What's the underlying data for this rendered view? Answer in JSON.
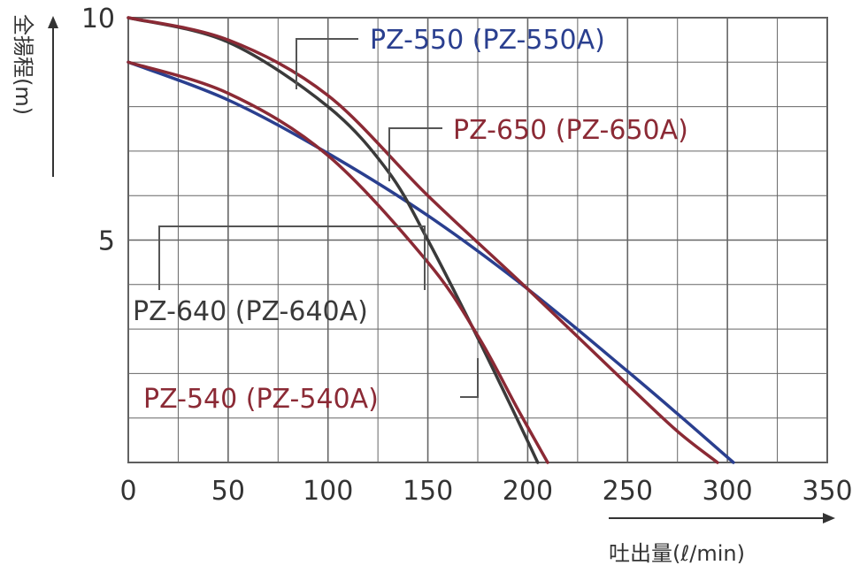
{
  "chart_data": {
    "type": "line",
    "xlabel": "吐出量(ℓ/min)",
    "ylabel": "全揚程(m)",
    "xlim": [
      0,
      350
    ],
    "ylim": [
      0,
      10
    ],
    "x_ticks": [
      "0",
      "50",
      "100",
      "150",
      "200",
      "250",
      "300",
      "350"
    ],
    "y_ticks": [
      "5",
      "10"
    ],
    "grid": true,
    "series": [
      {
        "name": "PZ-550 (PZ-550A)",
        "color": "#2a3f8f",
        "x": [
          0,
          50,
          100,
          150,
          200,
          250,
          280,
          303
        ],
        "y": [
          9.0,
          8.15,
          6.95,
          5.55,
          3.9,
          2.05,
          0.9,
          0.0
        ]
      },
      {
        "name": "PZ-650 (PZ-650A)",
        "color": "#8b2a35",
        "x": [
          0,
          50,
          100,
          150,
          200,
          250,
          275,
          295
        ],
        "y": [
          10.0,
          9.5,
          8.25,
          6.0,
          3.9,
          1.75,
          0.7,
          0.0
        ]
      },
      {
        "name": "PZ-640 (PZ-640A)",
        "color": "#3a3a3a",
        "x": [
          0,
          50,
          100,
          130,
          150,
          175,
          195,
          205
        ],
        "y": [
          10.0,
          9.45,
          8.0,
          6.55,
          5.0,
          2.8,
          0.95,
          0.0
        ]
      },
      {
        "name": "PZ-540 (PZ-540A)",
        "color": "#8b2a35",
        "x": [
          0,
          50,
          100,
          150,
          175,
          195,
          210
        ],
        "y": [
          9.0,
          8.3,
          6.9,
          4.5,
          2.85,
          1.2,
          0.0
        ]
      }
    ]
  }
}
